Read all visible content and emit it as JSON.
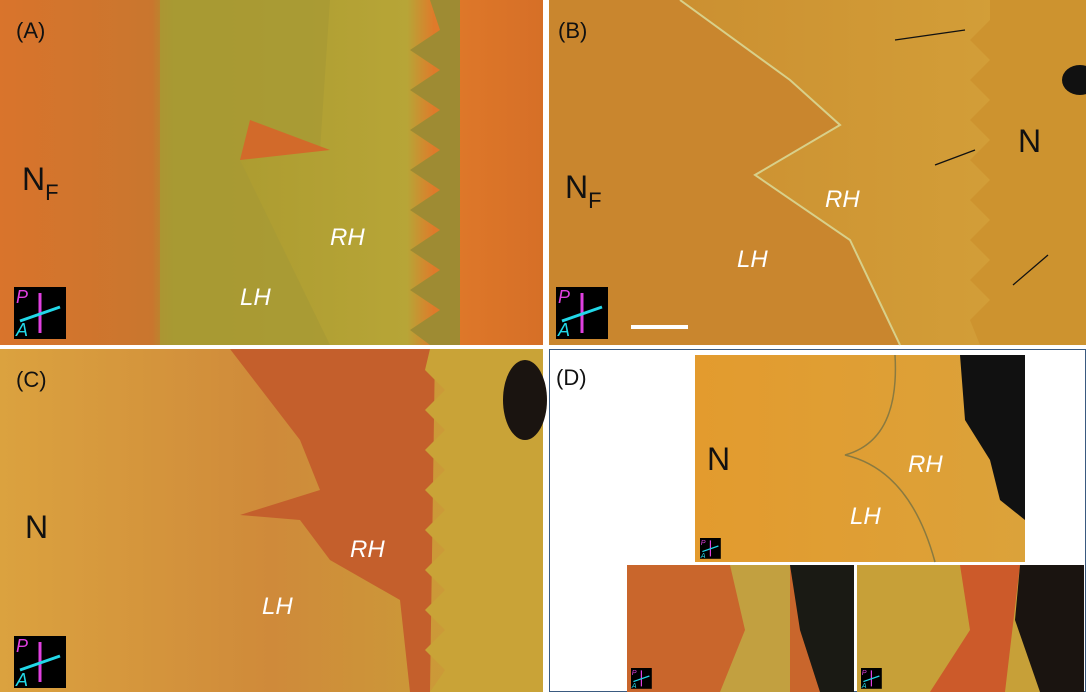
{
  "panels": [
    {
      "label": "(A)",
      "phase": {
        "main": "N",
        "sub": "F"
      },
      "regions": {
        "rh": "RH",
        "lh": "LH"
      },
      "polarizer": {
        "p": "P",
        "a": "A"
      }
    },
    {
      "label": "(B)",
      "phase": {
        "main": "N",
        "sub": "F"
      },
      "phase2": "N",
      "regions": {
        "rh": "RH",
        "lh": "LH"
      },
      "polarizer": {
        "p": "P",
        "a": "A"
      }
    },
    {
      "label": "(C)",
      "phase": {
        "main": "N"
      },
      "regions": {
        "rh": "RH",
        "lh": "LH"
      },
      "polarizer": {
        "p": "P",
        "a": "A"
      }
    },
    {
      "label": "(D)",
      "phase": {
        "main": "N"
      },
      "regions": {
        "rh": "RH",
        "lh": "LH"
      },
      "polarizers": [
        {
          "p": "P",
          "a": "A"
        },
        {
          "p": "P",
          "a": "A"
        },
        {
          "p": "P",
          "a": "A"
        }
      ]
    }
  ]
}
